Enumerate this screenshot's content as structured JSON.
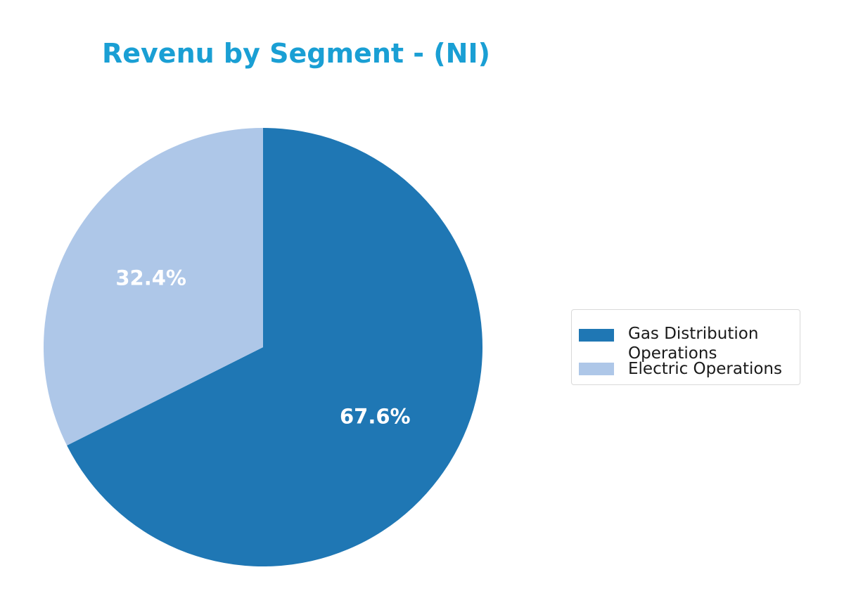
{
  "title": "Revenu by Segment - (NI)",
  "colors": {
    "title": "#1a9fd4",
    "background": "#ffffff"
  },
  "chart_data": {
    "type": "pie",
    "title": "Revenu by Segment - (NI)",
    "start_angle_deg": 90,
    "direction": "clockwise",
    "legend_placement": "right",
    "slices": [
      {
        "label": "Gas Distribution Operations",
        "legend_lines": [
          "Gas Distribution",
          "Operations"
        ],
        "value": 67.6,
        "pct_label": "67.6%",
        "color": "#1f77b4"
      },
      {
        "label": "Electric Operations",
        "legend_lines": [
          "Electric Operations"
        ],
        "value": 32.4,
        "pct_label": "32.4%",
        "color": "#aec7e8"
      }
    ]
  }
}
